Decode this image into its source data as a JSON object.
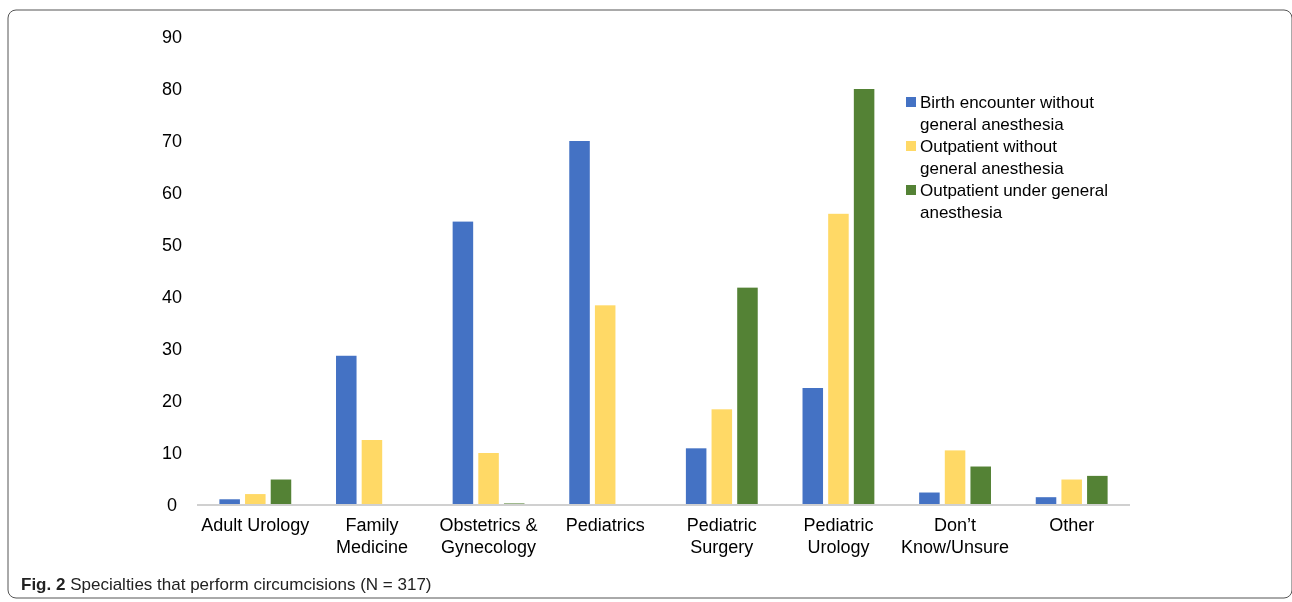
{
  "chart_data": {
    "type": "bar",
    "categories": [
      "Adult Urology",
      "Family Medicine",
      "Obstetrics & Gynecology",
      "Pediatrics",
      "Pediatric Surgery",
      "Pediatric Urology",
      "Don’t Know/Unsure",
      "Other"
    ],
    "series": [
      {
        "name": "Birth encounter without general anesthesia",
        "color": "#4472c4",
        "values": [
          1.1,
          28.7,
          54.5,
          70.0,
          10.9,
          22.5,
          2.4,
          1.5
        ]
      },
      {
        "name": "Outpatient without general anesthesia",
        "color": "#ffd966",
        "values": [
          2.1,
          12.5,
          10.0,
          38.4,
          18.4,
          56.0,
          10.5,
          4.9
        ]
      },
      {
        "name": "Outpatient under general anesthesia",
        "color": "#548235",
        "values": [
          4.9,
          0,
          0.3,
          0,
          41.8,
          80.0,
          7.4,
          5.6
        ]
      }
    ],
    "ylim": [
      0,
      90
    ],
    "yticks": [
      0,
      10,
      20,
      30,
      40,
      50,
      60,
      70,
      80,
      90
    ],
    "grid": false,
    "legend": "top right",
    "annotations": [
      "Fig. 2  Specialties that perform circumcisions (N = 317)"
    ]
  }
}
